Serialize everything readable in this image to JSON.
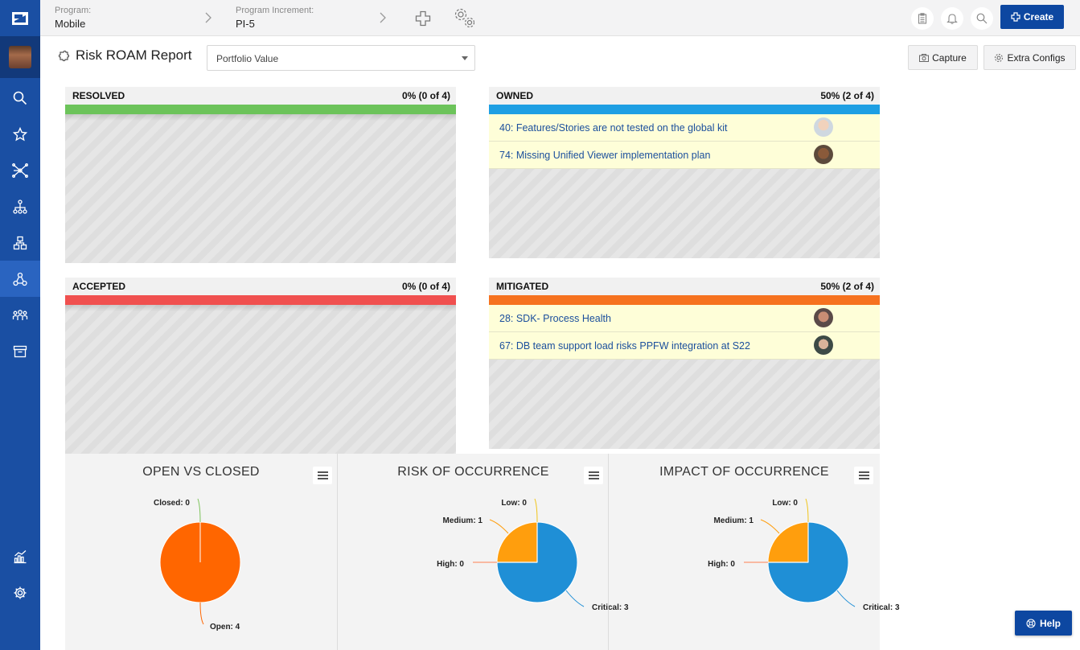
{
  "topbar": {
    "program_label": "Program:",
    "program_value": "Mobile",
    "pi_label": "Program Increment:",
    "pi_value": "PI-5",
    "create_label": "Create"
  },
  "sidebar": {
    "items": [
      "search-icon",
      "star-icon",
      "network-icon",
      "hierarchy-icon",
      "blocks-icon",
      "roam-icon",
      "teams-icon",
      "archive-icon",
      "reports-icon",
      "settings-icon"
    ],
    "active": "roam-icon"
  },
  "report": {
    "title": "Risk ROAM Report",
    "dropdown_value": "Portfolio Value",
    "capture_label": "Capture",
    "extra_configs_label": "Extra Configs"
  },
  "panels": {
    "resolved": {
      "title": "RESOLVED",
      "stat": "0% (0 of 4)",
      "color": "#6cc35a",
      "items": []
    },
    "owned": {
      "title": "OWNED",
      "stat": "50% (2 of 4)",
      "color": "#1e9fe3",
      "items": [
        {
          "text": "40: Features/Stories are not tested on the global kit"
        },
        {
          "text": "74: Missing Unified Viewer implementation plan"
        }
      ]
    },
    "accepted": {
      "title": "ACCEPTED",
      "stat": "0% (0 of 4)",
      "color": "#f0504f",
      "items": []
    },
    "mitigated": {
      "title": "MITIGATED",
      "stat": "50% (2 of 4)",
      "color": "#f6721f",
      "items": [
        {
          "text": "28: SDK- Process Health"
        },
        {
          "text": "67: DB team support load risks PPFW integration at S22"
        }
      ]
    }
  },
  "chart_data": [
    {
      "type": "pie",
      "title": "OPEN VS CLOSED",
      "slices": [
        {
          "label": "Closed",
          "value": 0,
          "display": "Closed: 0",
          "color": "#7cc35a"
        },
        {
          "label": "Open",
          "value": 4,
          "display": "Open: 4",
          "color": "#ff6600"
        }
      ]
    },
    {
      "type": "pie",
      "title": "RISK OF OCCURRENCE",
      "slices": [
        {
          "label": "Low",
          "value": 0,
          "display": "Low: 0",
          "color": "#f0c419"
        },
        {
          "label": "Medium",
          "value": 1,
          "display": "Medium: 1",
          "color": "#ff9e0d"
        },
        {
          "label": "High",
          "value": 0,
          "display": "High: 0",
          "color": "#ff7f50"
        },
        {
          "label": "Critical",
          "value": 3,
          "display": "Critical: 3",
          "color": "#1f8fd6"
        }
      ]
    },
    {
      "type": "pie",
      "title": "IMPACT OF OCCURRENCE",
      "slices": [
        {
          "label": "Low",
          "value": 0,
          "display": "Low: 0",
          "color": "#f0c419"
        },
        {
          "label": "Medium",
          "value": 1,
          "display": "Medium: 1",
          "color": "#ff9e0d"
        },
        {
          "label": "High",
          "value": 0,
          "display": "High: 0",
          "color": "#ff7f50"
        },
        {
          "label": "Critical",
          "value": 3,
          "display": "Critical: 3",
          "color": "#1f8fd6"
        }
      ]
    }
  ],
  "help_label": "Help"
}
